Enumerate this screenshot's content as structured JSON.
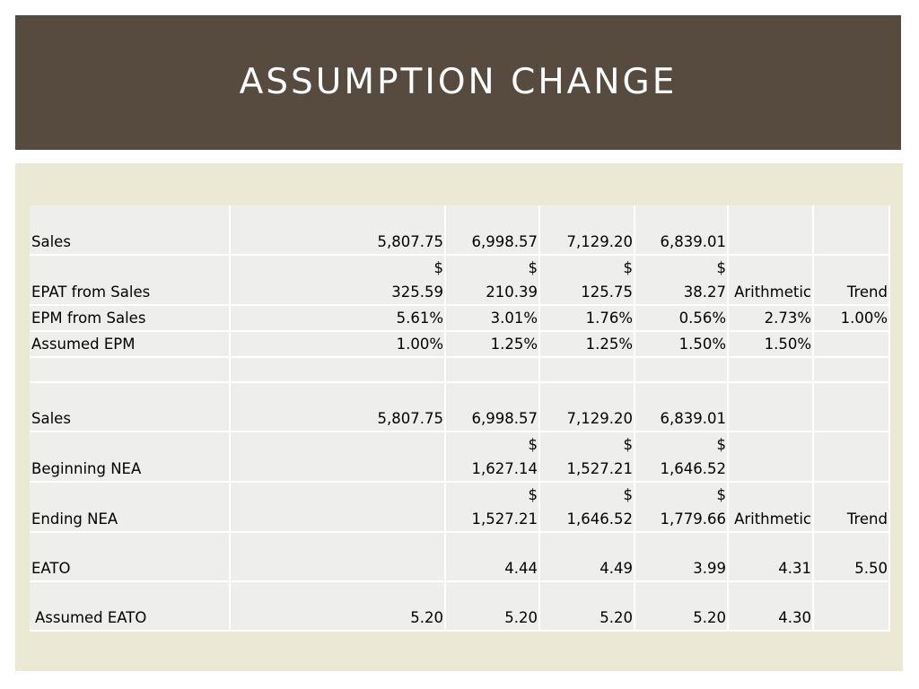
{
  "slide": {
    "title": "ASSUMPTION CHANGE"
  },
  "colors": {
    "title_bar": "#574a3e",
    "content_panel": "#ebe9d4",
    "table_bg": "#eeeeed"
  },
  "table": {
    "rows": [
      {
        "label": "Sales",
        "cells": [
          "5,807.75",
          "6,998.57",
          "7,129.20",
          "6,839.01",
          "",
          ""
        ]
      },
      {
        "label": "EPAT from Sales",
        "cells": [
          "$\n325.59",
          "$\n210.39",
          "$\n125.75",
          "$\n38.27",
          "Arithmetic",
          "Trend"
        ]
      },
      {
        "label": "EPM from Sales",
        "cells": [
          "5.61%",
          "3.01%",
          "1.76%",
          "0.56%",
          "2.73%",
          "1.00%"
        ]
      },
      {
        "label": "Assumed EPM",
        "cells": [
          "1.00%",
          "1.25%",
          "1.25%",
          "1.50%",
          "1.50%",
          ""
        ]
      },
      {
        "label": "",
        "cells": [
          "",
          "",
          "",
          "",
          "",
          ""
        ]
      },
      {
        "label": "Sales",
        "cells": [
          "5,807.75",
          "6,998.57",
          "7,129.20",
          "6,839.01",
          "",
          ""
        ]
      },
      {
        "label": "Beginning NEA",
        "cells": [
          "",
          "$\n1,627.14",
          "$\n1,527.21",
          "$\n1,646.52",
          "",
          ""
        ]
      },
      {
        "label": "Ending NEA",
        "cells": [
          "",
          "$\n1,527.21",
          "$\n1,646.52",
          "$\n1,779.66",
          "Arithmetic",
          "Trend"
        ]
      },
      {
        "label": "EATO",
        "cells": [
          "",
          "4.44",
          "4.49",
          "3.99",
          "4.31",
          "5.50"
        ]
      },
      {
        "label": "Assumed EATO",
        "cells": [
          "5.20",
          "5.20",
          "5.20",
          "5.20",
          "4.30",
          ""
        ]
      }
    ]
  }
}
